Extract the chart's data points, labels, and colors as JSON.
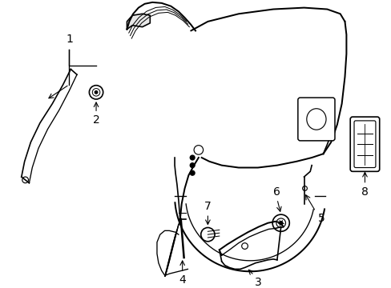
{
  "background_color": "#ffffff",
  "line_color": "#000000",
  "lw": 1.2,
  "label_fontsize": 9,
  "figsize": [
    4.89,
    3.6
  ],
  "dpi": 100
}
